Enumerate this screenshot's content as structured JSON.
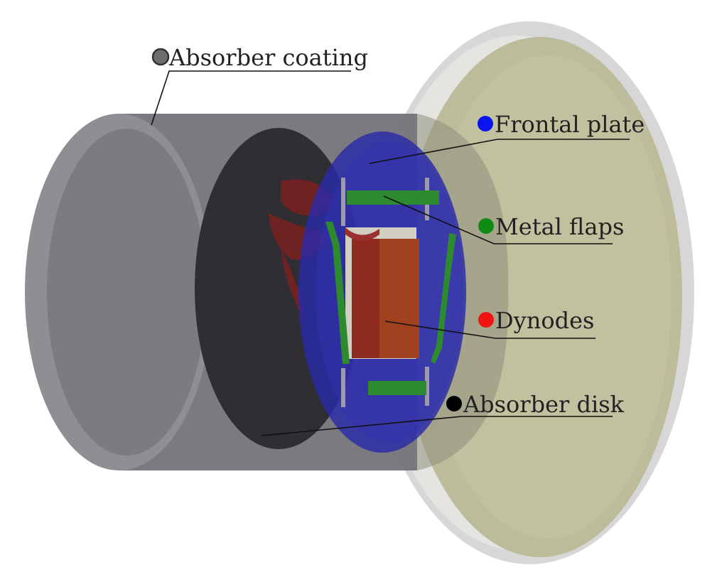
{
  "labels": {
    "absorber_coating": {
      "text": "Absorber coating",
      "color": "#6e6e6e"
    },
    "frontal_plate": {
      "text": "Frontal plate",
      "color": "#0a14f0"
    },
    "metal_flaps": {
      "text": "Metal flaps",
      "color": "#0f8a14"
    },
    "dynodes": {
      "text": "Dynodes",
      "color": "#f01414"
    },
    "absorber_disk": {
      "text": "Absorber disk",
      "color": "#000000"
    }
  },
  "component_colors": {
    "coating": "#6f6f74",
    "absorber_disk": "#2f2f33",
    "frontal_plate": "#2828a8",
    "metal_flaps": "#2e8a2e",
    "dynodes": "#8a2a22",
    "outer_disk_rim": "#d6d6d6",
    "outer_disk_face": "#bdbd9c"
  }
}
